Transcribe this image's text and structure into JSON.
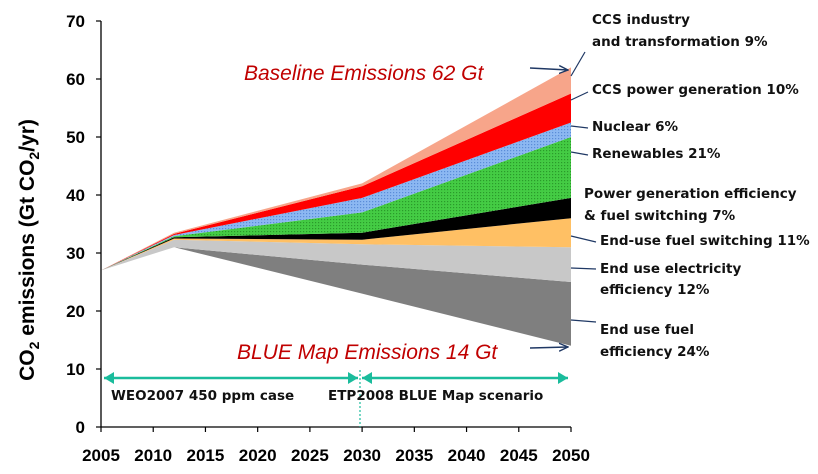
{
  "chart_data": {
    "type": "area",
    "x": [
      2005,
      2012,
      2030,
      2050
    ],
    "xticks": [
      2005,
      2010,
      2015,
      2020,
      2025,
      2030,
      2035,
      2040,
      2045,
      2050
    ],
    "xlim": [
      2005,
      2050
    ],
    "ylim": [
      0,
      70
    ],
    "yticks": [
      0,
      10,
      20,
      30,
      40,
      50,
      60,
      70
    ],
    "ylabel": "CO₂ emissions (Gt CO₂/yr)",
    "ylabel_main": "CO",
    "ylabel_sub": "2",
    "ylabel_mid": " emissions (Gt CO",
    "ylabel_sub2": "2",
    "ylabel_end": "/yr)",
    "grid": false,
    "bands": [
      {
        "name": "End use fuel efficiency 24%",
        "color": "#7f7f7f",
        "lower": [
          27,
          31,
          23,
          14
        ],
        "upper": [
          27,
          31,
          28,
          25
        ]
      },
      {
        "name": "End use electricity efficiency 12%",
        "color": "#c8c8c8",
        "lower": [
          27,
          31,
          28,
          25
        ],
        "upper": [
          27,
          32.3,
          31.5,
          31
        ]
      },
      {
        "name": "End-use fuel switching 11%",
        "color": "#ffc064",
        "lower": [
          27,
          32.3,
          31.5,
          31
        ],
        "upper": [
          27,
          32.5,
          32.3,
          36
        ]
      },
      {
        "name": "Power generation efficiency & fuel switching 7%",
        "color": "#000000",
        "lower": [
          27,
          32.5,
          32.3,
          36
        ],
        "upper": [
          27,
          32.7,
          33.5,
          39.5
        ]
      },
      {
        "name": "Renewables 21%",
        "color": "#44cc44",
        "lower": [
          27,
          32.7,
          33.5,
          39.5
        ],
        "upper": [
          27,
          32.9,
          37,
          50
        ]
      },
      {
        "name": "Nuclear 6%",
        "color": "#88b4f0",
        "lower": [
          27,
          32.9,
          37,
          50
        ],
        "upper": [
          27,
          33.1,
          39.5,
          52.5
        ]
      },
      {
        "name": "CCS power generation 10%",
        "color": "#ff0000",
        "lower": [
          27,
          33.1,
          39.5,
          52.5
        ],
        "upper": [
          27,
          33.3,
          41.5,
          57.5
        ]
      },
      {
        "name": "CCS industry and transformation 9%",
        "color": "#f7a58a",
        "lower": [
          27,
          33.3,
          41.5,
          57.5
        ],
        "upper": [
          27,
          33.5,
          42,
          62
        ]
      }
    ],
    "annotations": {
      "baseline": "Baseline Emissions 62 Gt",
      "blue_map": "BLUE Map Emissions 14 Gt",
      "ccs_industry_l1": "CCS industry",
      "ccs_industry_l2": "and transformation 9%",
      "ccs_power": "CCS power generation 10%",
      "nuclear": "Nuclear 6%",
      "renewables": "Renewables 21%",
      "power_gen_l1": "Power generation efficiency",
      "power_gen_l2": "& fuel switching 7%",
      "enduse_switch": "End-use fuel switching 11%",
      "elec_eff_l1": "End use electricity",
      "elec_eff_l2": "efficiency 12%",
      "fuel_eff_l1": "End use fuel",
      "fuel_eff_l2": "efficiency 24%"
    },
    "periods": [
      {
        "label": "WEO2007 450 ppm case",
        "from": 2005,
        "to": 2030
      },
      {
        "label": "ETP2008 BLUE Map scenario",
        "from": 2030,
        "to": 2050
      }
    ],
    "colors": {
      "arrow_green": "#1abc9c",
      "red_text": "#c00000",
      "navy_arrow": "#1f3864"
    }
  }
}
